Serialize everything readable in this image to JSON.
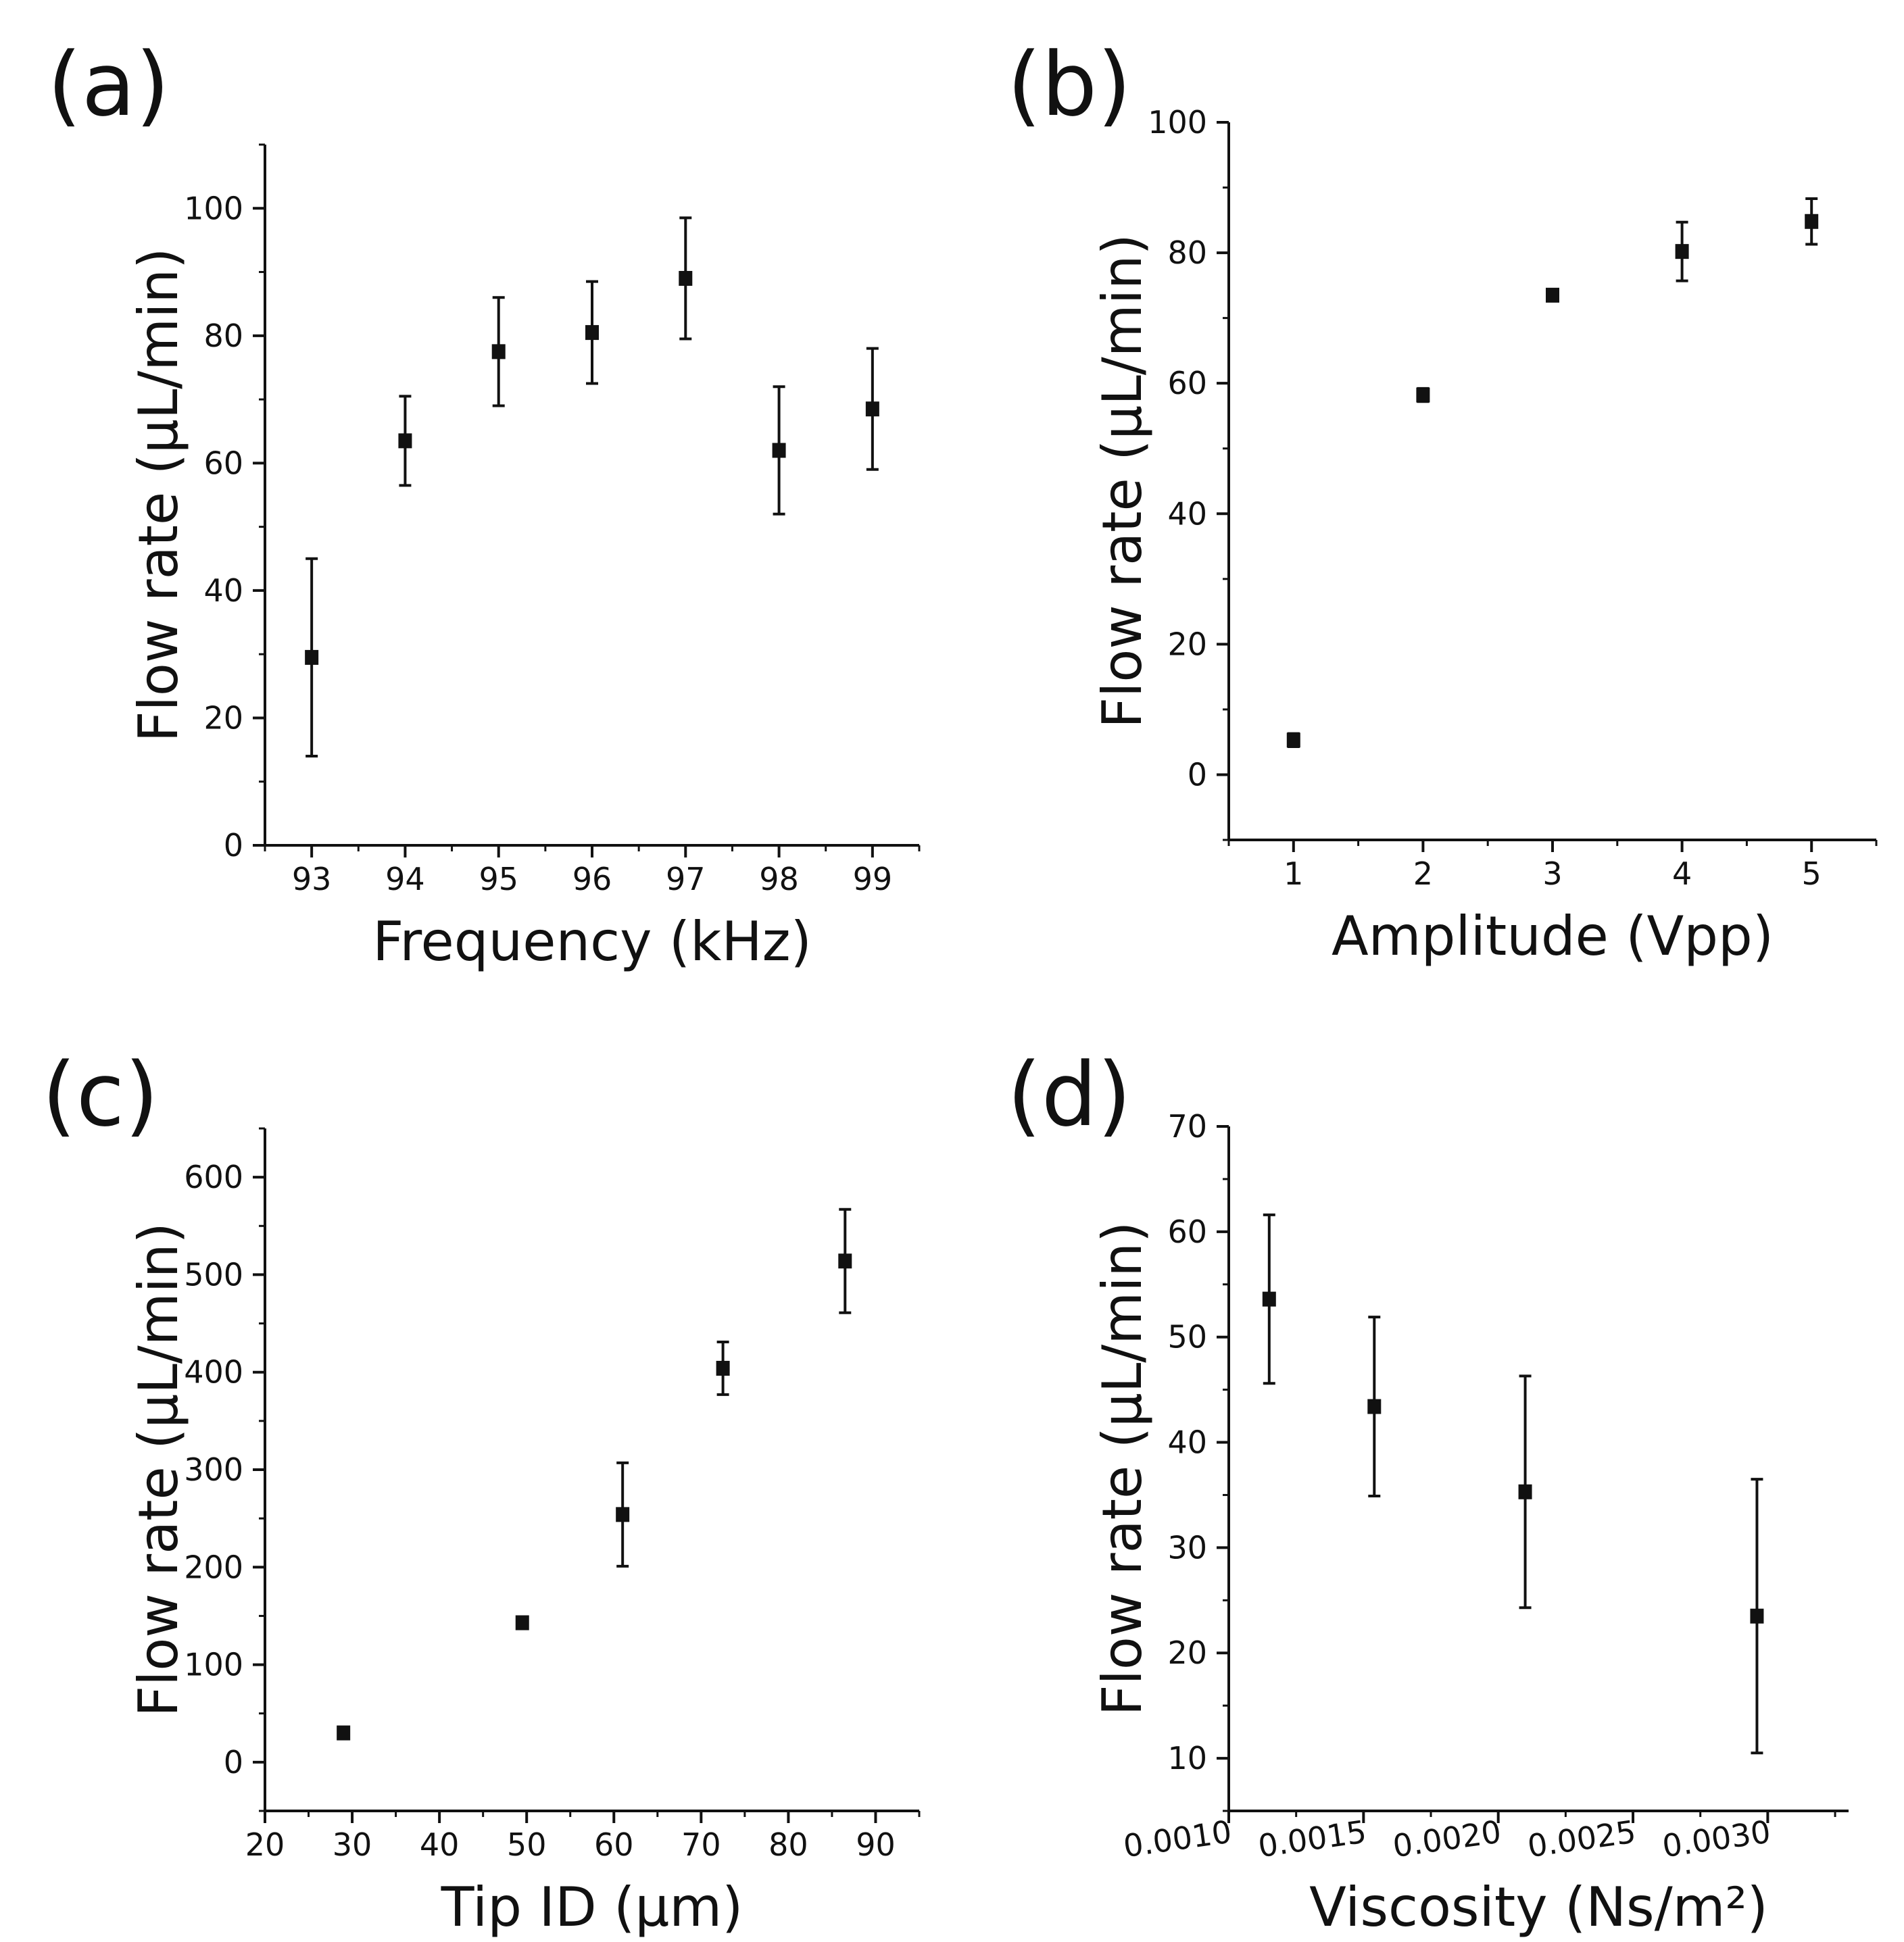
{
  "chart_data": [
    {
      "id": "a",
      "type": "scatter",
      "panel_label": "(a)",
      "xlabel": "Frequency (kHz)",
      "ylabel": "Flow rate (µL/min)",
      "xlim": [
        92.5,
        99.5
      ],
      "ylim": [
        0,
        110
      ],
      "xticks": [
        93,
        94,
        95,
        96,
        97,
        98,
        99
      ],
      "yticks": [
        0,
        20,
        40,
        60,
        80,
        100
      ],
      "x_minor": 0.5,
      "y_minor": 10,
      "tick_format": {
        "x": 0,
        "y": 0
      },
      "x": [
        93,
        94,
        95,
        96,
        97,
        98,
        99
      ],
      "y": [
        29.5,
        63.5,
        77.5,
        80.5,
        89,
        62,
        68.5
      ],
      "err": [
        15.5,
        7,
        8.5,
        8,
        9.5,
        10,
        9.5
      ]
    },
    {
      "id": "b",
      "type": "scatter",
      "panel_label": "(b)",
      "xlabel": "Amplitude (Vpp)",
      "ylabel": "Flow rate (µL/min)",
      "xlim": [
        0.5,
        5.5
      ],
      "ylim": [
        -10,
        100
      ],
      "xticks": [
        1,
        2,
        3,
        4,
        5
      ],
      "yticks": [
        0,
        20,
        40,
        60,
        80,
        100
      ],
      "x_minor": 0.5,
      "y_minor": 10,
      "tick_format": {
        "x": 0,
        "y": 0
      },
      "x": [
        1,
        2,
        3,
        4,
        5
      ],
      "y": [
        5.3,
        58.2,
        73.5,
        80.2,
        84.8
      ],
      "err": [
        1,
        1,
        0.5,
        4.5,
        3.5
      ]
    },
    {
      "id": "c",
      "type": "scatter",
      "panel_label": "(c)",
      "xlabel": "Tip ID (µm)",
      "ylabel": "Flow rate (µL/min)",
      "xlim": [
        20,
        95
      ],
      "ylim": [
        -50,
        650
      ],
      "xticks": [
        20,
        30,
        40,
        50,
        60,
        70,
        80,
        90
      ],
      "yticks": [
        0,
        100,
        200,
        300,
        400,
        500,
        600
      ],
      "x_minor": 5,
      "y_minor": 50,
      "tick_format": {
        "x": 0,
        "y": 0
      },
      "x": [
        29,
        49.5,
        61,
        72.5,
        86.5
      ],
      "y": [
        30,
        143,
        254,
        404,
        514
      ],
      "err": [
        4,
        6,
        53,
        27,
        53
      ]
    },
    {
      "id": "d",
      "type": "scatter",
      "panel_label": "(d)",
      "xlabel": "Viscosity (Ns/m²)",
      "ylabel": "Flow rate (µL/min)",
      "xlim": [
        0.001,
        0.0033
      ],
      "ylim": [
        5,
        70
      ],
      "xticks": [
        0.001,
        0.0015,
        0.002,
        0.0025,
        0.003
      ],
      "yticks": [
        10,
        20,
        30,
        40,
        50,
        60,
        70
      ],
      "x_minor": 0.00025,
      "y_minor": 5,
      "tick_format": {
        "x": 4,
        "y": 0
      },
      "x": [
        0.00115,
        0.00154,
        0.0021,
        0.00296
      ],
      "y": [
        53.6,
        43.4,
        35.3,
        23.5
      ],
      "err": [
        8,
        8.5,
        11,
        13
      ]
    }
  ]
}
